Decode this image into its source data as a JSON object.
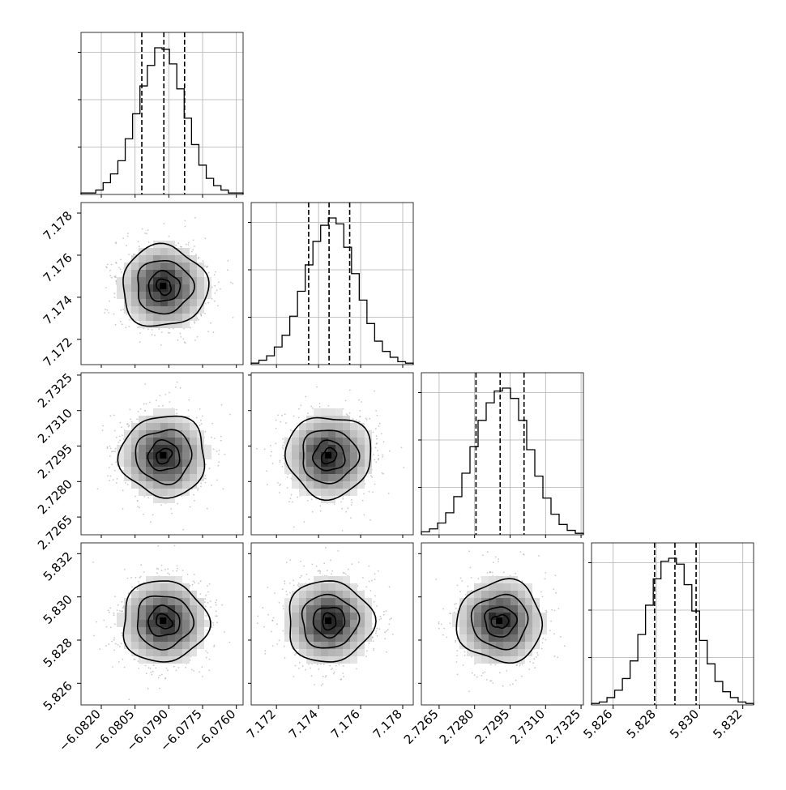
{
  "chart_data": {
    "type": "corner",
    "parameters": [
      {
        "axis_min": -6.0829,
        "axis_max": -6.0757,
        "ticks": [
          -6.082,
          -6.0805,
          -6.079,
          -6.0775,
          -6.076
        ],
        "tick_labels": [
          "−6.0820",
          "−6.0805",
          "−6.0790",
          "−6.0775",
          "−6.0760"
        ],
        "quantiles": [
          -6.0802,
          -6.07922,
          -6.0783
        ],
        "hist_values": [
          0.01,
          0.01,
          0.03,
          0.08,
          0.14,
          0.23,
          0.38,
          0.55,
          0.74,
          0.88,
          1.0,
          0.99,
          0.89,
          0.72,
          0.52,
          0.34,
          0.2,
          0.11,
          0.06,
          0.03,
          0.01,
          0.01
        ]
      },
      {
        "axis_min": 7.1708,
        "axis_max": 7.1785,
        "ticks": [
          7.172,
          7.174,
          7.176,
          7.178
        ],
        "tick_labels": [
          "7.172",
          "7.174",
          "7.176",
          "7.178"
        ],
        "quantiles": [
          7.17353,
          7.1745,
          7.17548
        ],
        "hist_values": [
          0.01,
          0.03,
          0.06,
          0.12,
          0.2,
          0.33,
          0.5,
          0.68,
          0.84,
          0.95,
          1.0,
          0.96,
          0.8,
          0.62,
          0.44,
          0.28,
          0.16,
          0.09,
          0.05,
          0.02,
          0.01
        ]
      },
      {
        "axis_min": 2.72575,
        "axis_max": 2.7326,
        "ticks": [
          2.7265,
          2.728,
          2.7295,
          2.731,
          2.7325
        ],
        "tick_labels": [
          "2.7265",
          "2.7280",
          "2.7295",
          "2.7310",
          "2.7325"
        ],
        "quantiles": [
          2.72806,
          2.72908,
          2.73009
        ],
        "hist_values": [
          0.02,
          0.04,
          0.08,
          0.15,
          0.26,
          0.42,
          0.6,
          0.78,
          0.9,
          0.98,
          1.0,
          0.93,
          0.78,
          0.58,
          0.4,
          0.25,
          0.14,
          0.07,
          0.03,
          0.01
        ]
      },
      {
        "axis_min": 5.825,
        "axis_max": 5.8325,
        "ticks": [
          5.826,
          5.828,
          5.83,
          5.832
        ],
        "tick_labels": [
          "5.826",
          "5.828",
          "5.830",
          "5.832"
        ],
        "quantiles": [
          5.82792,
          5.82886,
          5.82984
        ],
        "hist_values": [
          0.01,
          0.02,
          0.05,
          0.1,
          0.18,
          0.3,
          0.48,
          0.68,
          0.86,
          0.98,
          1.0,
          0.96,
          0.82,
          0.64,
          0.44,
          0.28,
          0.16,
          0.09,
          0.05,
          0.02,
          0.01
        ]
      }
    ],
    "pairs": [
      {
        "row": 1,
        "col": 0,
        "mean_x": -6.07922,
        "mean_y": 7.1745
      },
      {
        "row": 2,
        "col": 0,
        "mean_x": -6.07922,
        "mean_y": 2.72908
      },
      {
        "row": 2,
        "col": 1,
        "mean_x": 7.1745,
        "mean_y": 2.72908
      },
      {
        "row": 3,
        "col": 0,
        "mean_x": -6.07922,
        "mean_y": 5.82886
      },
      {
        "row": 3,
        "col": 1,
        "mean_x": 7.1745,
        "mean_y": 5.82886
      },
      {
        "row": 3,
        "col": 2,
        "mean_x": 2.72908,
        "mean_y": 5.82886
      }
    ],
    "grid": true,
    "colors": {
      "hist": "#000000",
      "scatter": "#9a9a9a",
      "density": "#000000"
    }
  }
}
